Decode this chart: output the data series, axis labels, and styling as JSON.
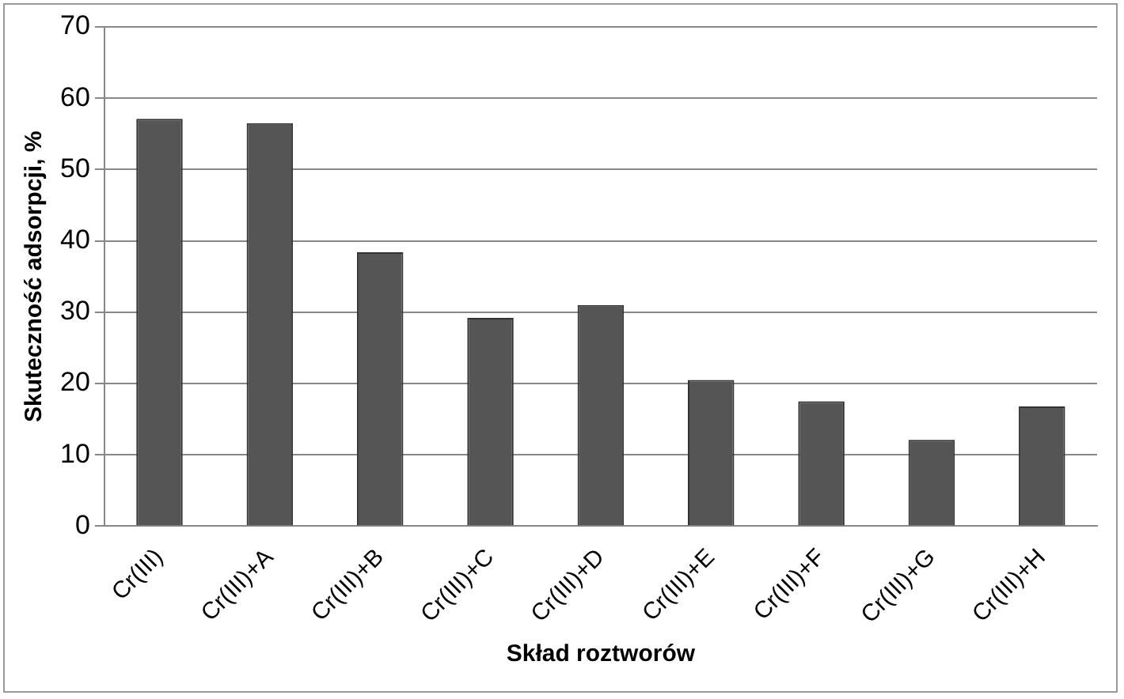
{
  "chart_data": {
    "type": "bar",
    "xlabel": "Skład roztworów",
    "ylabel": "Skuteczność adsorpcji, %",
    "categories": [
      "Cr(III)",
      "Cr(III)+A",
      "Cr(III)+B",
      "Cr(III)+C",
      "Cr(III)+D",
      "Cr(III)+E",
      "Cr(III)+F",
      "Cr(III)+G",
      "Cr(III)+H"
    ],
    "values": [
      57.1,
      56.5,
      38.4,
      29.2,
      31.0,
      20.5,
      17.5,
      12.1,
      16.8
    ],
    "color": "#555555",
    "ylim": [
      0,
      70
    ],
    "yticks": [
      0,
      10,
      20,
      30,
      40,
      50,
      60,
      70
    ],
    "grid": "y",
    "legend": false
  }
}
